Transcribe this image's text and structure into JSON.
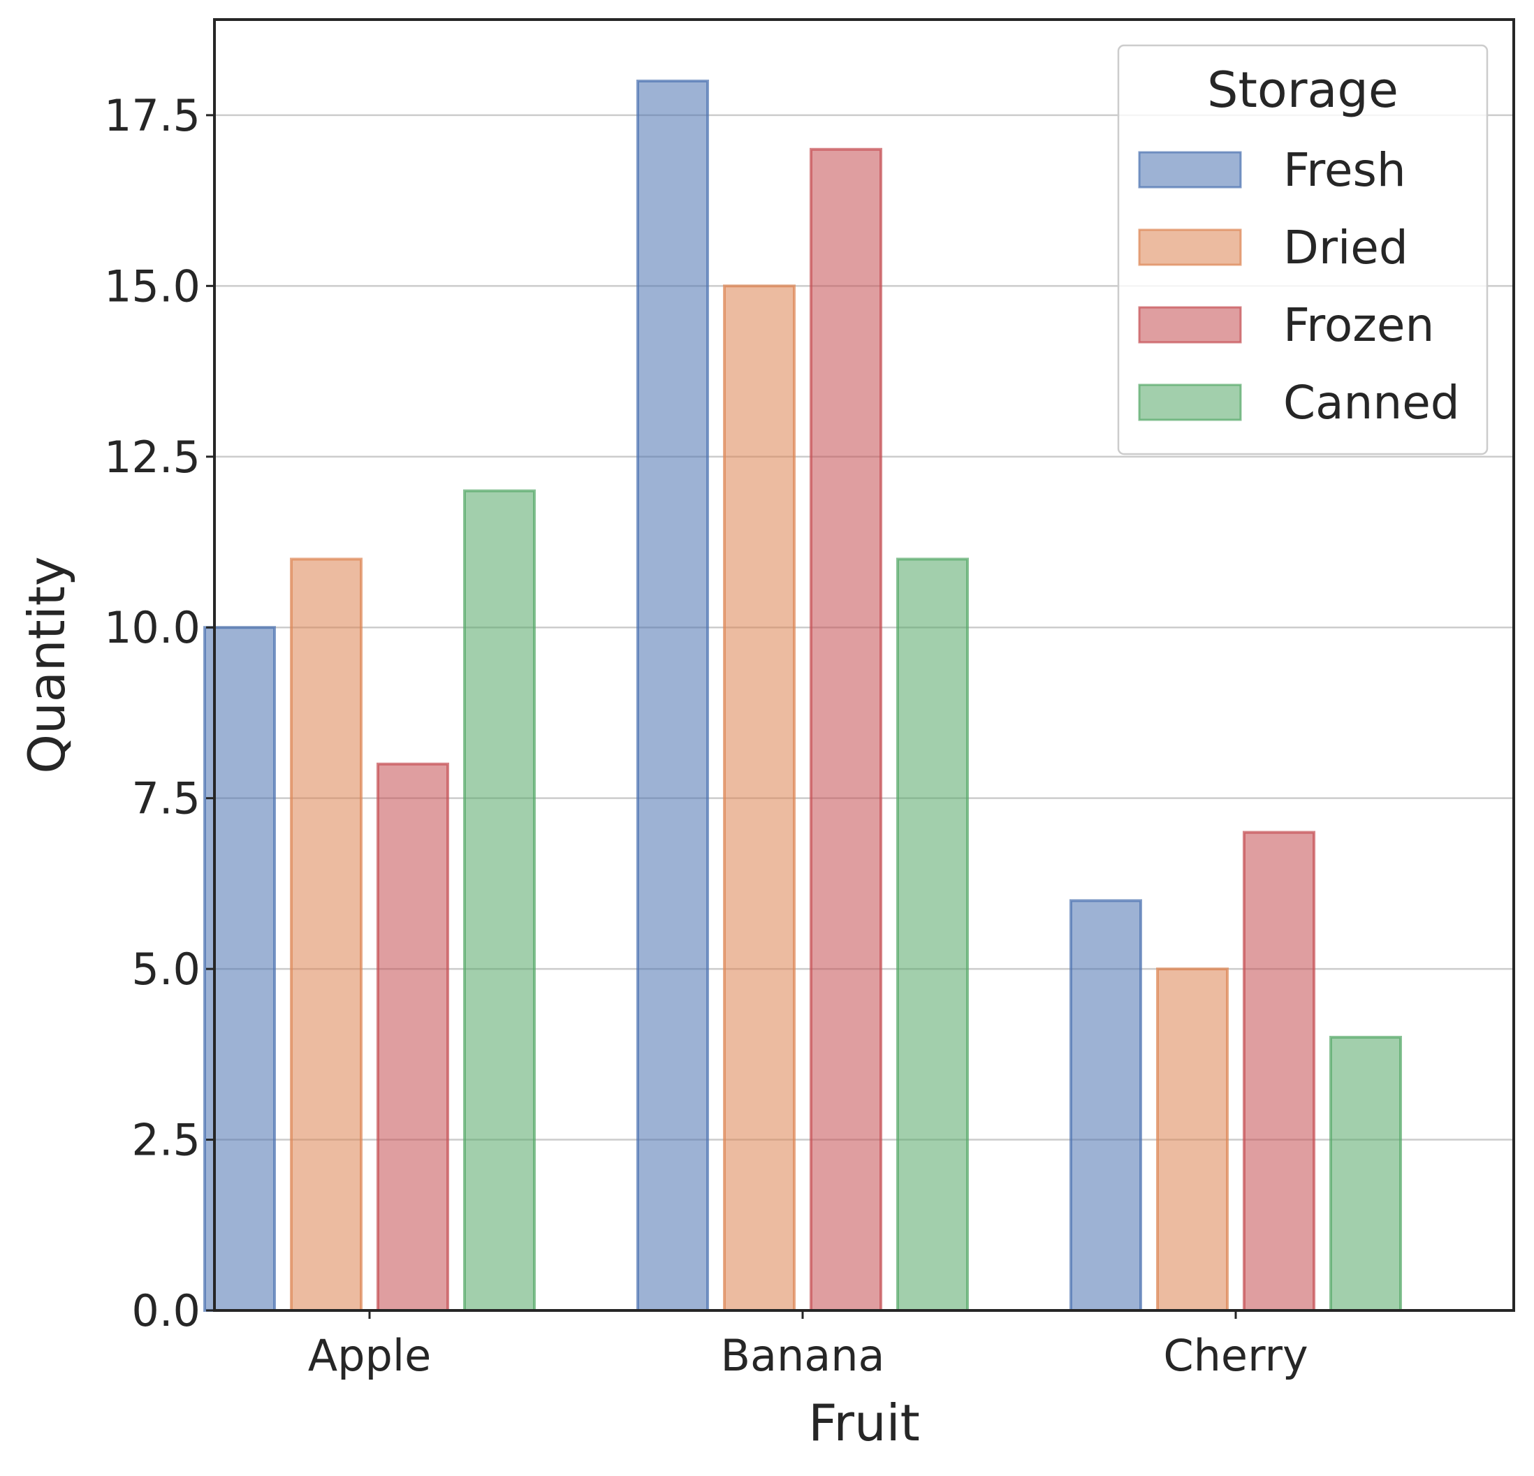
{
  "chart_data": {
    "type": "bar",
    "xlabel": "Fruit",
    "ylabel": "Quantity",
    "categories": [
      "Apple",
      "Banana",
      "Cherry"
    ],
    "series": [
      {
        "name": "Fresh",
        "color": "#4c72b0",
        "values": [
          10,
          18,
          6
        ]
      },
      {
        "name": "Dried",
        "color": "#dd8452",
        "values": [
          11,
          15,
          5
        ]
      },
      {
        "name": "Frozen",
        "color": "#c44e52",
        "values": [
          8,
          17,
          7
        ]
      },
      {
        "name": "Canned",
        "color": "#55a868",
        "values": [
          12,
          11,
          4
        ]
      }
    ],
    "ylim": [
      0,
      18.9
    ],
    "yticks": [
      0,
      2.5,
      5,
      7.5,
      10,
      12.5,
      15,
      17.5
    ],
    "ytick_labels": [
      "0.0",
      "2.5",
      "5.0",
      "7.5",
      "10.0",
      "12.5",
      "15.0",
      "17.5"
    ],
    "grid": "horizontal",
    "legend": {
      "title": "Storage",
      "placement": "upper right"
    }
  }
}
